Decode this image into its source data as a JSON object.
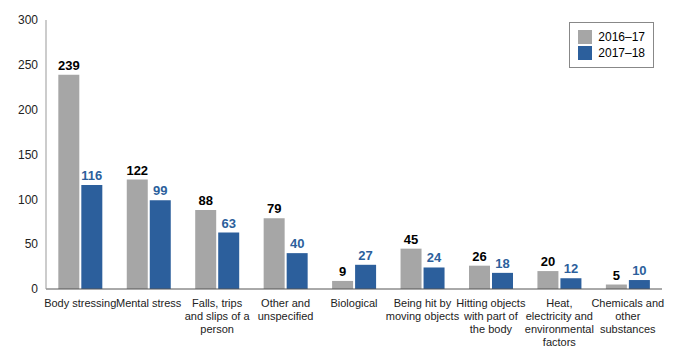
{
  "chart_data": {
    "type": "bar",
    "categories": [
      "Body stressing",
      "Mental stress",
      "Falls, trips and slips of a person",
      "Other and unspecified",
      "Biological",
      "Being hit by moving objects",
      "Hitting objects with part of the body",
      "Heat, electricity and environmental factors",
      "Chemicals and other substances"
    ],
    "series": [
      {
        "name": "2016–17",
        "color": "#a6a6a6",
        "values": [
          239,
          122,
          88,
          79,
          9,
          45,
          26,
          20,
          5
        ]
      },
      {
        "name": "2017–18",
        "color": "#2c5f9c",
        "values": [
          116,
          99,
          63,
          40,
          27,
          24,
          18,
          12,
          10
        ]
      }
    ],
    "ylim": [
      0,
      300
    ],
    "yticks": [
      0,
      50,
      100,
      150,
      200,
      250,
      300
    ],
    "legend": "top-right",
    "data_labels": true,
    "grid": false
  }
}
